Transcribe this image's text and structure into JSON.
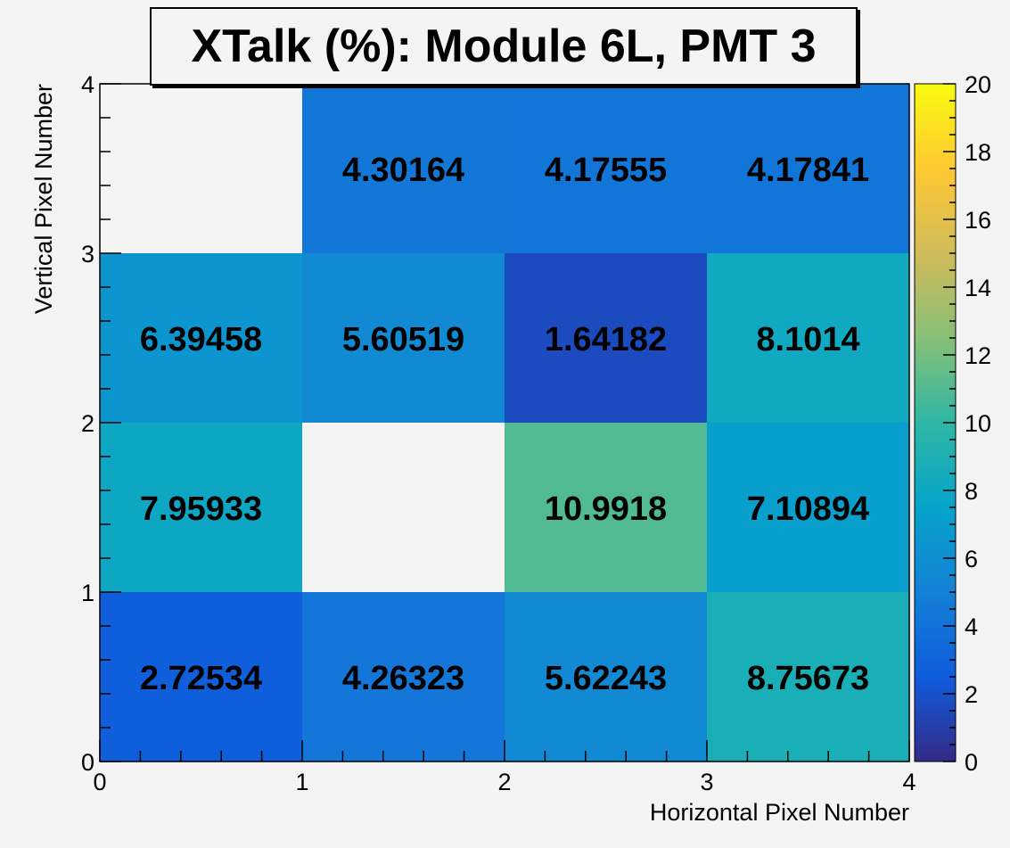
{
  "chart_data": {
    "type": "heatmap",
    "title": "XTalk (%): Module 6L, PMT 3",
    "xlabel": "Horizontal Pixel Number",
    "ylabel": "Vertical Pixel Number",
    "xlim": [
      0,
      4
    ],
    "ylim": [
      0,
      4
    ],
    "x_ticks": [
      "0",
      "1",
      "2",
      "3",
      "4"
    ],
    "y_ticks": [
      "0",
      "1",
      "2",
      "3",
      "4"
    ],
    "colorbar": {
      "range": [
        0,
        20
      ],
      "ticks": [
        "0",
        "2",
        "4",
        "6",
        "8",
        "10",
        "12",
        "14",
        "16",
        "18",
        "20"
      ],
      "palette": [
        "#352a87",
        "#0f5cdd",
        "#1481d6",
        "#06a4ca",
        "#2eb7a4",
        "#87bf77",
        "#d1bb59",
        "#fec832",
        "#f9fb0e"
      ]
    },
    "empty_color": "#f4f4f4",
    "cells": [
      {
        "row": 0,
        "col": 0,
        "value": 2.72534,
        "label": "2.72534"
      },
      {
        "row": 0,
        "col": 1,
        "value": 4.26323,
        "label": "4.26323"
      },
      {
        "row": 0,
        "col": 2,
        "value": 5.62243,
        "label": "5.62243"
      },
      {
        "row": 0,
        "col": 3,
        "value": 8.75673,
        "label": "8.75673"
      },
      {
        "row": 1,
        "col": 0,
        "value": 7.95933,
        "label": "7.95933"
      },
      {
        "row": 1,
        "col": 2,
        "value": 10.9918,
        "label": "10.9918"
      },
      {
        "row": 1,
        "col": 3,
        "value": 7.10894,
        "label": "7.10894"
      },
      {
        "row": 2,
        "col": 0,
        "value": 6.39458,
        "label": "6.39458"
      },
      {
        "row": 2,
        "col": 1,
        "value": 5.60519,
        "label": "5.60519"
      },
      {
        "row": 2,
        "col": 2,
        "value": 1.64182,
        "label": "1.64182"
      },
      {
        "row": 2,
        "col": 3,
        "value": 8.1014,
        "label": "8.1014"
      },
      {
        "row": 3,
        "col": 1,
        "value": 4.30164,
        "label": "4.30164"
      },
      {
        "row": 3,
        "col": 2,
        "value": 4.17555,
        "label": "4.17555"
      },
      {
        "row": 3,
        "col": 3,
        "value": 4.17841,
        "label": "4.17841"
      }
    ]
  }
}
